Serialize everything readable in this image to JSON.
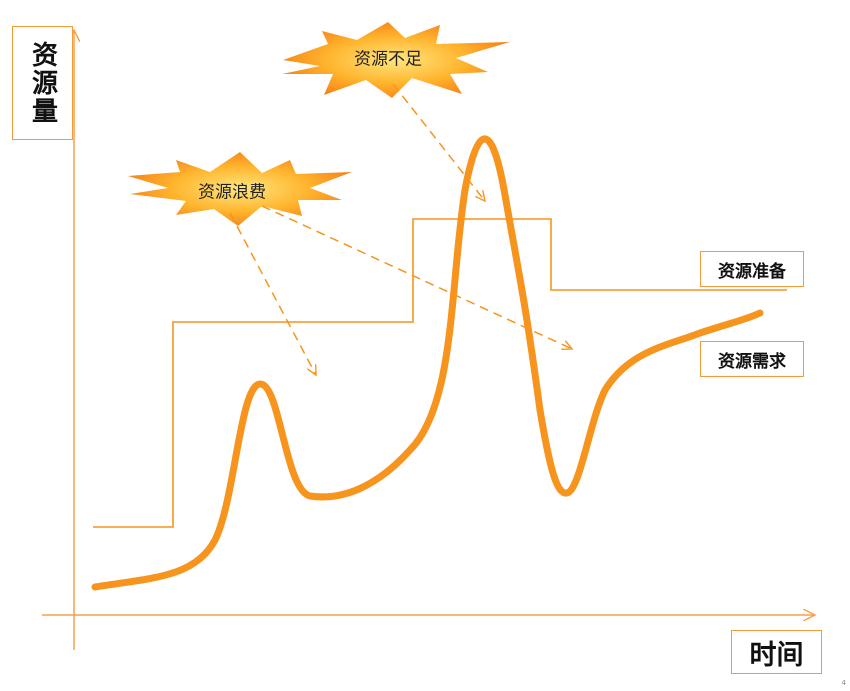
{
  "axes": {
    "y_label": "资源量",
    "x_label": "时间",
    "color": "#f7a04a"
  },
  "legend": {
    "supply": "资源准备",
    "demand": "资源需求"
  },
  "callouts": {
    "waste": "资源浪费",
    "shortage": "资源不足"
  },
  "colors": {
    "demand_curve": "#f7941d",
    "supply_line": "#f7941d",
    "arrow": "#f7941d",
    "burst_outer": "#f7931e",
    "burst_inner": "#ffe680"
  },
  "page_number": "4"
}
